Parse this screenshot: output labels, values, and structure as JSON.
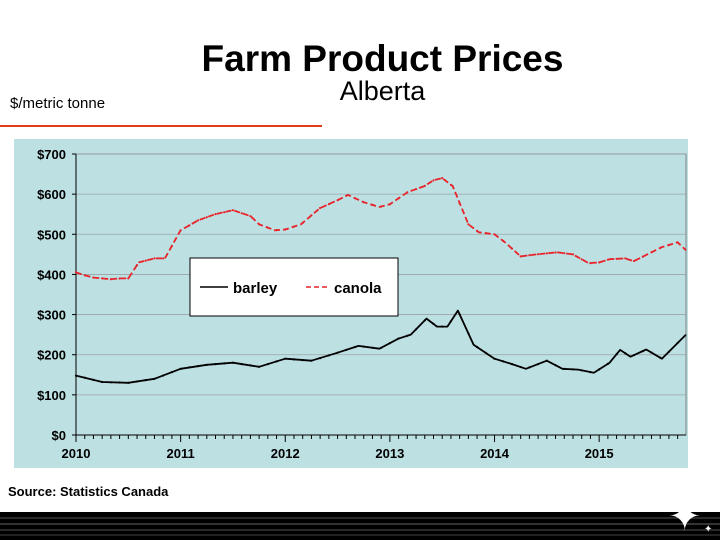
{
  "slide": {
    "title": "Farm Product Prices",
    "subtitle": "Alberta",
    "unit_label": "$/metric tonne",
    "source": "Source: Statistics Canada"
  },
  "colors": {
    "plot_background": "#bde0e3",
    "barley": "#000000",
    "canola": "#e8242a",
    "accent_rule": "#e03c1c"
  },
  "chart_data": {
    "type": "line",
    "title": "",
    "xlabel": "",
    "ylabel": "$/metric tonne",
    "ylim": [
      0,
      700
    ],
    "xlim": [
      2010.0,
      2015.83
    ],
    "y_ticks": [
      "$0",
      "$100",
      "$200",
      "$300",
      "$400",
      "$500",
      "$600",
      "$700"
    ],
    "x_ticks": [
      "2010",
      "2011",
      "2012",
      "2013",
      "2014",
      "2015"
    ],
    "grid": true,
    "legend": "center-right",
    "series": [
      {
        "name": "barley",
        "x": [
          2010.0,
          2010.25,
          2010.5,
          2010.75,
          2011.0,
          2011.25,
          2011.5,
          2011.75,
          2012.0,
          2012.25,
          2012.5,
          2012.7,
          2012.9,
          2013.08,
          2013.2,
          2013.35,
          2013.45,
          2013.55,
          2013.65,
          2013.8,
          2014.0,
          2014.15,
          2014.3,
          2014.5,
          2014.65,
          2014.8,
          2014.95,
          2015.1,
          2015.2,
          2015.3,
          2015.45,
          2015.6,
          2015.83
        ],
        "y": [
          148,
          132,
          130,
          140,
          165,
          175,
          180,
          170,
          190,
          185,
          205,
          222,
          215,
          240,
          250,
          290,
          270,
          270,
          310,
          225,
          190,
          178,
          165,
          185,
          165,
          163,
          155,
          180,
          212,
          195,
          213,
          190,
          250
        ]
      },
      {
        "name": "canola",
        "x": [
          2010.0,
          2010.08,
          2010.17,
          2010.33,
          2010.42,
          2010.5,
          2010.6,
          2010.75,
          2010.85,
          2011.0,
          2011.17,
          2011.33,
          2011.5,
          2011.67,
          2011.75,
          2011.9,
          2012.0,
          2012.15,
          2012.33,
          2012.5,
          2012.6,
          2012.75,
          2012.9,
          2013.0,
          2013.17,
          2013.33,
          2013.42,
          2013.5,
          2013.6,
          2013.75,
          2013.85,
          2014.0,
          2014.1,
          2014.25,
          2014.4,
          2014.6,
          2014.75,
          2014.9,
          2015.0,
          2015.1,
          2015.25,
          2015.33,
          2015.5,
          2015.6,
          2015.75,
          2015.83
        ],
        "y": [
          405,
          398,
          392,
          388,
          390,
          390,
          430,
          440,
          440,
          510,
          535,
          550,
          560,
          545,
          525,
          510,
          512,
          525,
          565,
          585,
          598,
          580,
          568,
          575,
          605,
          620,
          635,
          640,
          620,
          525,
          505,
          500,
          480,
          445,
          450,
          455,
          450,
          428,
          430,
          438,
          440,
          433,
          455,
          468,
          480,
          460
        ]
      }
    ]
  }
}
